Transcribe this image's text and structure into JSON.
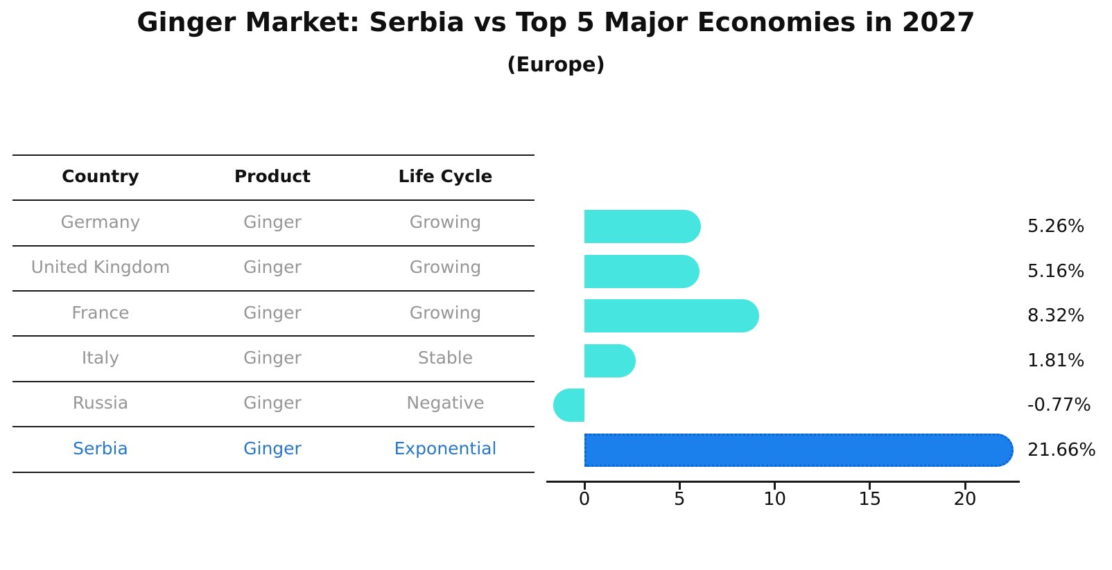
{
  "title": "Ginger Market: Serbia vs Top 5 Major Economies in 2027",
  "subtitle": "(Europe)",
  "table": {
    "columns": [
      "Country",
      "Product",
      "Life Cycle"
    ],
    "rows": [
      {
        "country": "Germany",
        "product": "Ginger",
        "life_cycle": "Growing",
        "highlight": false
      },
      {
        "country": "United Kingdom",
        "product": "Ginger",
        "life_cycle": "Growing",
        "highlight": false
      },
      {
        "country": "France",
        "product": "Ginger",
        "life_cycle": "Growing",
        "highlight": false
      },
      {
        "country": "Italy",
        "product": "Ginger",
        "life_cycle": "Stable",
        "highlight": false
      },
      {
        "country": "Russia",
        "product": "Ginger",
        "life_cycle": "Negative",
        "highlight": false
      },
      {
        "country": "Serbia",
        "product": "Ginger",
        "life_cycle": "Exponential",
        "highlight": true
      }
    ]
  },
  "chart_data": {
    "type": "bar",
    "orientation": "horizontal",
    "title": "Ginger Market: Serbia vs Top 5 Major Economies in 2027",
    "subtitle": "(Europe)",
    "categories": [
      "Germany",
      "United Kingdom",
      "France",
      "Italy",
      "Russia",
      "Serbia"
    ],
    "values": [
      5.26,
      5.16,
      8.32,
      1.81,
      -0.77,
      21.66
    ],
    "value_labels": [
      "5.26%",
      "5.16%",
      "8.32%",
      "1.81%",
      "-0.77%",
      "21.66%"
    ],
    "xlabel": "",
    "ylabel": "",
    "x_ticks": [
      0,
      5,
      10,
      15,
      20
    ],
    "xlim": [
      -2,
      22.9
    ],
    "grid": false,
    "legend": false,
    "highlight_index": 5,
    "colors": {
      "default_bar": "#46E5E0",
      "highlight_bar": "#1B80EC",
      "highlight_text": "#2878C8",
      "row_text": "#969696",
      "header_text": "#111111",
      "axis": "#1a1a1a"
    }
  }
}
